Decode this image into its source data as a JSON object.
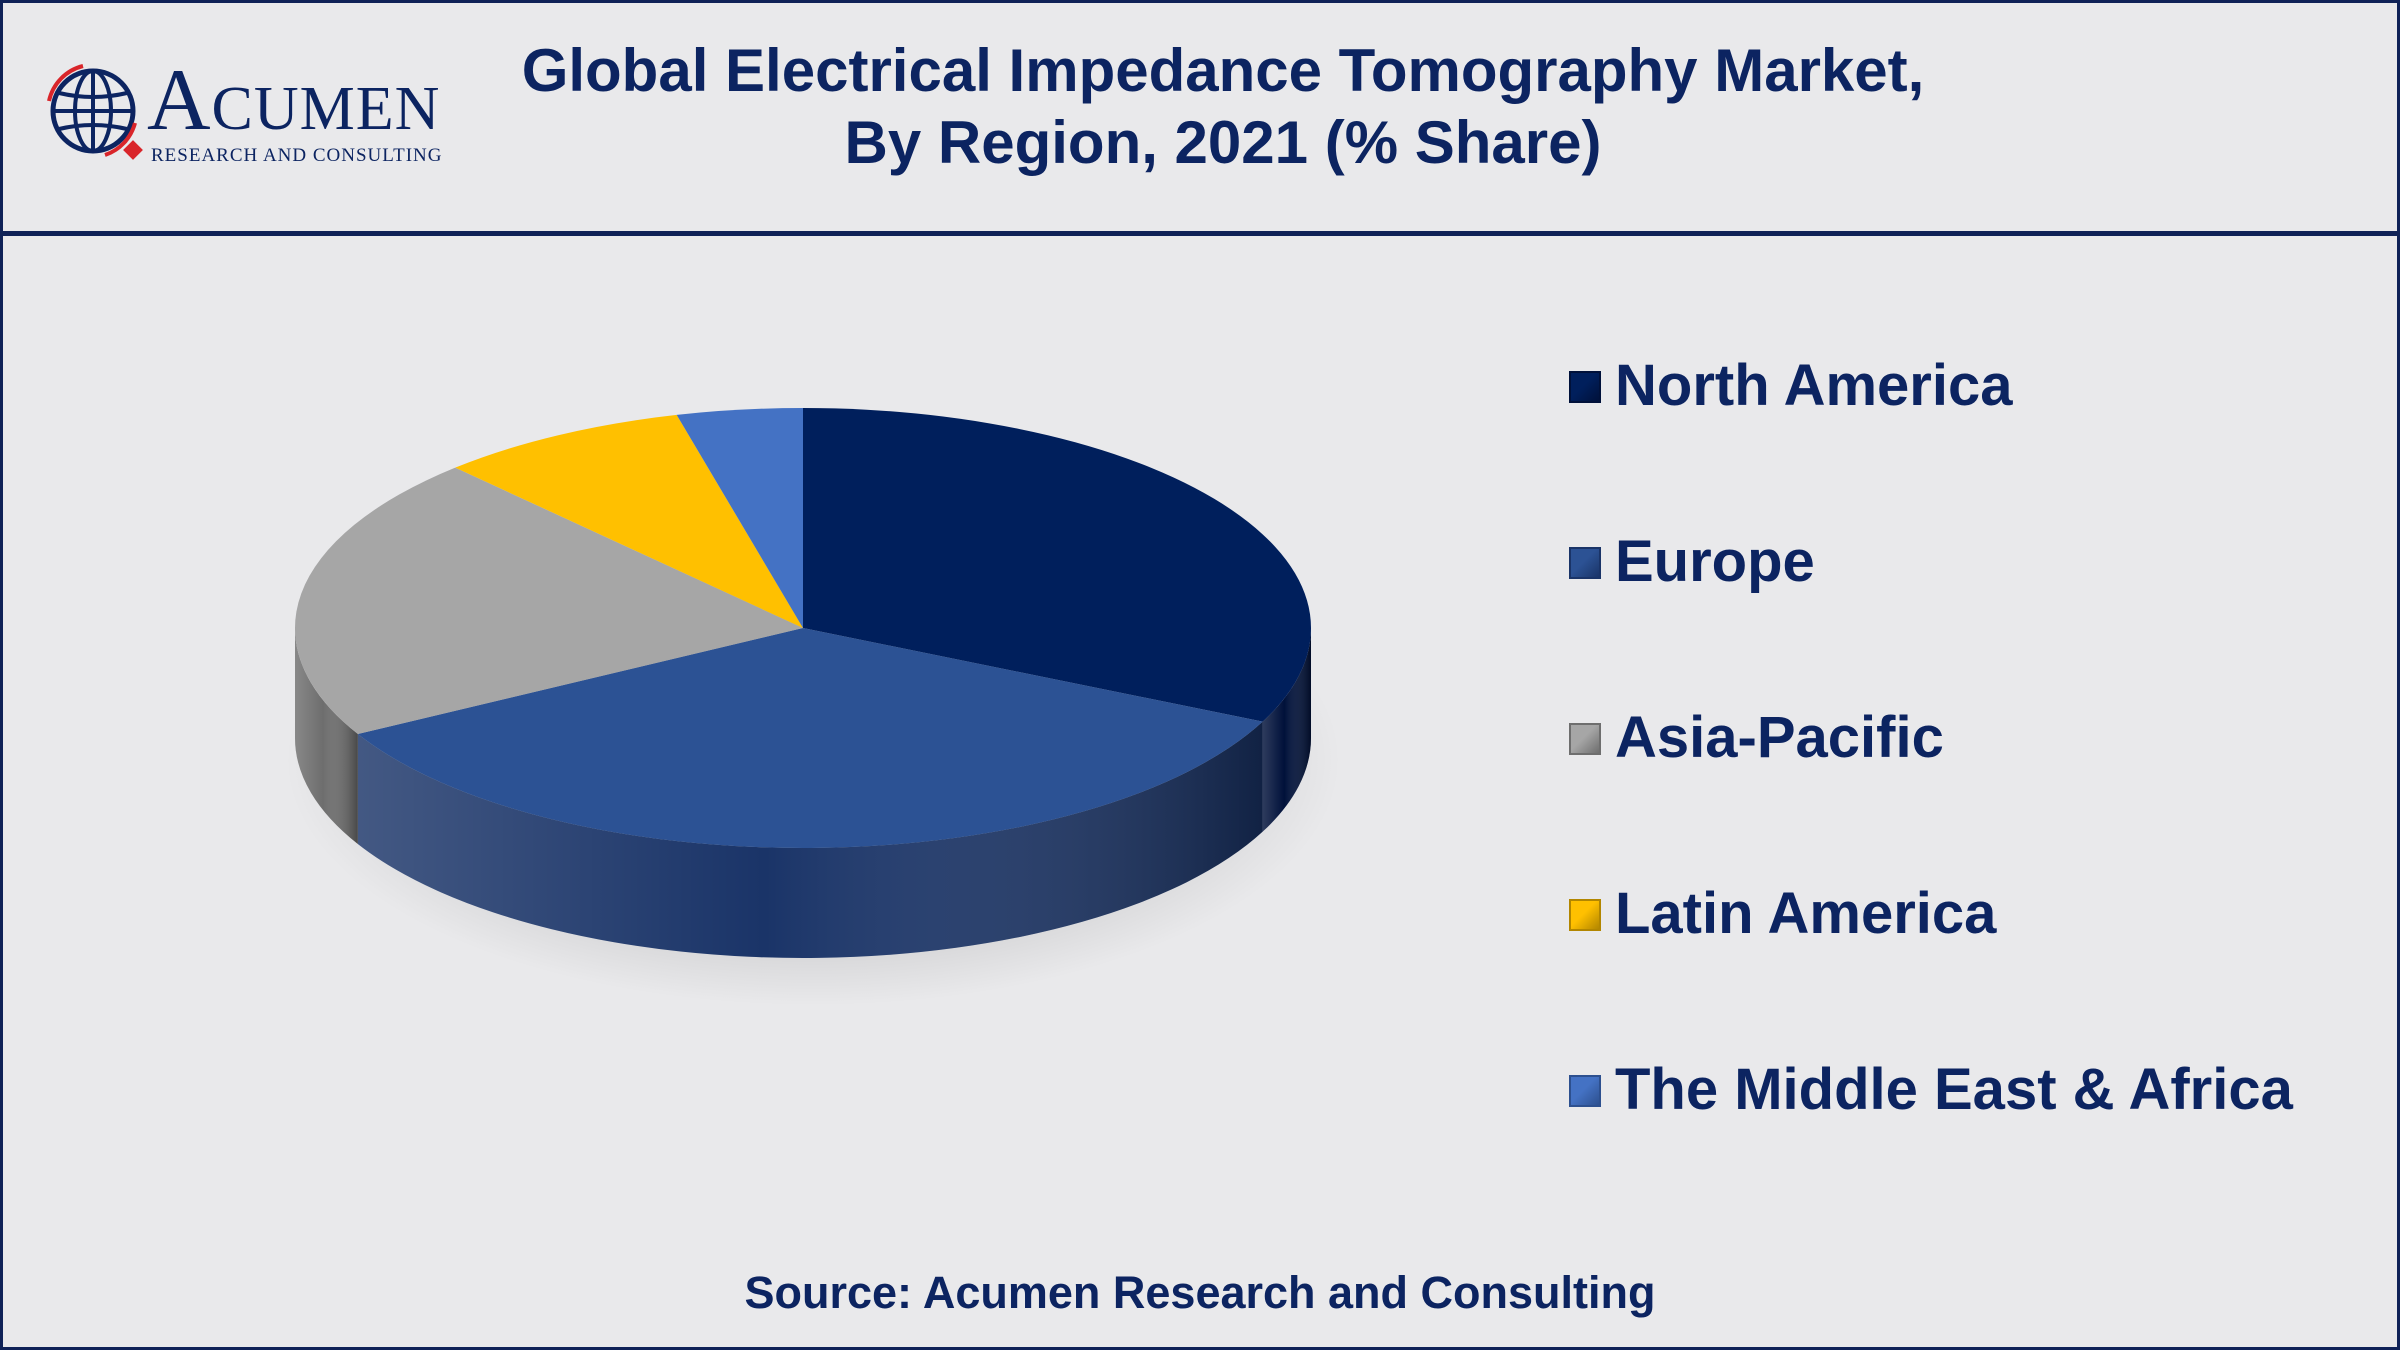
{
  "logo": {
    "brand": "Acumen",
    "tagline": "RESEARCH AND CONSULTING"
  },
  "title_line1": "Global Electrical Impedance Tomography Market,",
  "title_line2": "By Region, 2021 (% Share)",
  "source": "Source: Acumen Research and Consulting",
  "colors": {
    "text": "#0c2461",
    "border": "#0f2257",
    "background": "#e9e9eb"
  },
  "chart_data": {
    "type": "pie",
    "title": "Global Electrical Impedance Tomography Market, By Region, 2021 (% Share)",
    "style": "3d",
    "legend_position": "right",
    "categories": [
      "North America",
      "Europe",
      "Asia-Pacific",
      "Latin America",
      "The Middle East & Africa"
    ],
    "values": [
      32,
      35,
      21,
      8,
      4
    ],
    "unit": "% Share",
    "colors": [
      "#001f5c",
      "#2c5294",
      "#a6a6a6",
      "#ffc000",
      "#4472c4"
    ],
    "side_colors": [
      "#00113a",
      "#1a3468",
      "#6e6e6e",
      "#b28600",
      "#2d508f"
    ]
  }
}
